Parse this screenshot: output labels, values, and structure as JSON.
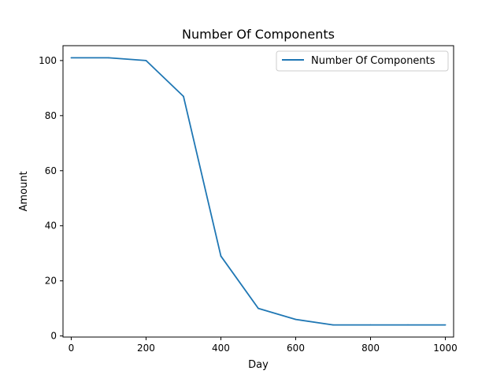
{
  "chart_data": {
    "type": "line",
    "title": "Number Of Components",
    "xlabel": "Day",
    "ylabel": "Amount",
    "xlim": [
      -22,
      1022
    ],
    "ylim": [
      -0.4,
      105.4
    ],
    "xticks": [
      0,
      200,
      400,
      600,
      800,
      1000
    ],
    "yticks": [
      0,
      20,
      40,
      60,
      80,
      100
    ],
    "grid": false,
    "legend_position": "top-right",
    "series": [
      {
        "name": "Number Of Components",
        "color": "#1f77b4",
        "x": [
          0,
          100,
          200,
          300,
          400,
          500,
          600,
          700,
          800,
          900,
          1000
        ],
        "y": [
          101,
          101,
          100,
          87,
          29,
          10,
          6,
          4,
          4,
          4,
          4
        ]
      }
    ]
  }
}
